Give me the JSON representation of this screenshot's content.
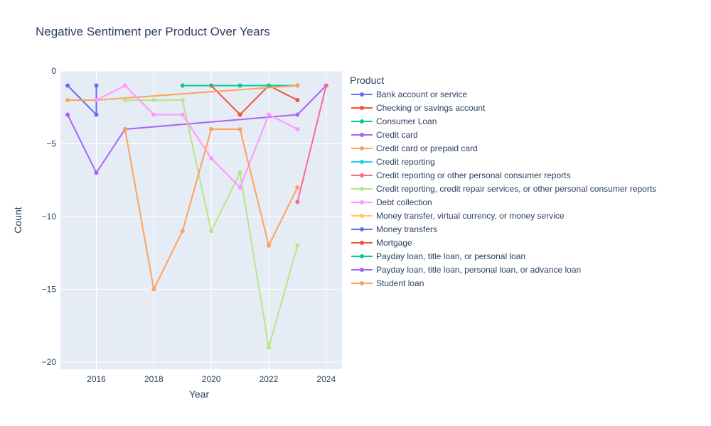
{
  "chart_data": {
    "type": "line",
    "title": "Negative Sentiment per Product Over Years",
    "xlabel": "Year",
    "ylabel": "Count",
    "xlim": [
      2014.75,
      2024.55
    ],
    "ylim": [
      -20.5,
      0
    ],
    "xticks": [
      2016,
      2018,
      2020,
      2022,
      2024
    ],
    "yticks": [
      0,
      -5,
      -10,
      -15,
      -20
    ],
    "grid": true,
    "legend_title": "Product",
    "legend_position": "right",
    "series": [
      {
        "name": "Bank account or service",
        "color": "#636efa",
        "points": [
          [
            2015,
            -1
          ],
          [
            2016,
            -3
          ],
          [
            2016,
            -1
          ]
        ]
      },
      {
        "name": "Checking or savings account",
        "color": "#EF553B",
        "points": [
          [
            2020,
            -1
          ],
          [
            2021,
            -3
          ],
          [
            2022,
            -1
          ],
          [
            2023,
            -2
          ]
        ]
      },
      {
        "name": "Consumer Loan",
        "color": "#00cc96",
        "points": [
          [
            2019,
            -1
          ],
          [
            2021,
            -1
          ],
          [
            2022,
            -1
          ],
          [
            2023,
            -1
          ]
        ]
      },
      {
        "name": "Credit card",
        "color": "#ab63fa",
        "points": [
          [
            2015,
            -3
          ],
          [
            2016,
            -7
          ],
          [
            2017,
            -4
          ],
          [
            2023,
            -3
          ],
          [
            2024,
            -1
          ]
        ]
      },
      {
        "name": "Credit card or prepaid card",
        "color": "#FFA15A",
        "points": [
          [
            2015,
            -2
          ],
          [
            2016,
            -2
          ],
          [
            2023,
            -1
          ]
        ]
      },
      {
        "name": "Credit reporting",
        "color": "#19d3f3",
        "points": []
      },
      {
        "name": "Credit reporting or other personal consumer reports",
        "color": "#FF6692",
        "points": [
          [
            2023,
            -9
          ],
          [
            2024,
            -1
          ]
        ]
      },
      {
        "name": "Credit reporting, credit repair services, or other personal consumer reports",
        "color": "#B6E880",
        "points": [
          [
            2017,
            -2
          ],
          [
            2018,
            -2
          ],
          [
            2019,
            -2
          ],
          [
            2020,
            -11
          ],
          [
            2021,
            -7
          ],
          [
            2022,
            -19
          ],
          [
            2023,
            -12
          ]
        ]
      },
      {
        "name": "Debt collection",
        "color": "#FF97FF",
        "points": [
          [
            2016,
            -2
          ],
          [
            2017,
            -1
          ],
          [
            2018,
            -3
          ],
          [
            2019,
            -3
          ],
          [
            2020,
            -6
          ],
          [
            2021,
            -8
          ],
          [
            2022,
            -3
          ],
          [
            2023,
            -4
          ]
        ]
      },
      {
        "name": "Money transfer, virtual currency, or money service",
        "color": "#FECB52",
        "points": []
      },
      {
        "name": "Money transfers",
        "color": "#636efa",
        "points": []
      },
      {
        "name": "Mortgage",
        "color": "#EF553B",
        "points": []
      },
      {
        "name": "Payday loan, title loan, or personal loan",
        "color": "#00cc96",
        "points": []
      },
      {
        "name": "Payday loan, title loan, personal loan, or advance loan",
        "color": "#ab63fa",
        "points": []
      },
      {
        "name": "Student loan",
        "color": "#FFA15A",
        "points": [
          [
            2017,
            -4
          ],
          [
            2018,
            -15
          ],
          [
            2019,
            -11
          ],
          [
            2020,
            -4
          ],
          [
            2021,
            -4
          ],
          [
            2022,
            -12
          ],
          [
            2023,
            -8
          ]
        ]
      }
    ]
  }
}
